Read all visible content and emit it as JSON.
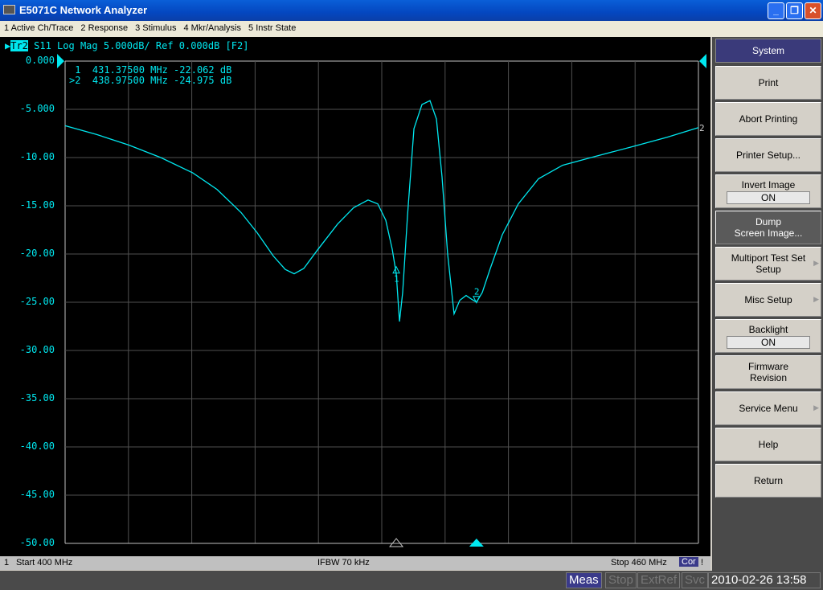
{
  "window": {
    "title": "E5071C Network Analyzer",
    "buttons": [
      "_",
      "❐",
      "✕"
    ]
  },
  "menu": [
    "1 Active Ch/Trace",
    "2 Response",
    "3 Stimulus",
    "4 Mkr/Analysis",
    "5 Instr State"
  ],
  "trace_header": {
    "trace": "Tr2",
    "text": " S11 Log Mag 5.000dB/ Ref 0.000dB [F2]"
  },
  "markers_readout": [
    " 1  431.37500 MHz -22.062 dB",
    ">2  438.97500 MHz -24.975 dB"
  ],
  "chart_data": {
    "type": "line",
    "xlim": [
      400,
      460
    ],
    "ylim": [
      -50,
      0
    ],
    "y_ticks": [
      "0.000",
      "-5.000",
      "-10.00",
      "-15.00",
      "-20.00",
      "-25.00",
      "-30.00",
      "-35.00",
      "-40.00",
      "-45.00",
      "-50.00"
    ],
    "x_unit": "MHz",
    "grid": true,
    "series": [
      {
        "name": "S11",
        "color": "#00e8f0",
        "x": [
          400,
          402.97,
          406.02,
          409.06,
          412.11,
          414.39,
          416.67,
          418.2,
          419.72,
          420.86,
          421.7,
          422.61,
          423.9,
          425.81,
          427.33,
          428.7,
          429.62,
          430.38,
          430.99,
          431.375,
          431.68,
          431.98,
          432.44,
          433.05,
          433.81,
          434.57,
          435.18,
          435.71,
          436.24,
          436.85,
          437.39,
          437.99,
          438.53,
          438.975,
          439.52,
          440.28,
          441.42,
          442.94,
          444.85,
          447.13,
          450.18,
          453.98,
          457.03,
          460
        ],
        "y": [
          -6.7,
          -7.6,
          -8.7,
          -10,
          -11.6,
          -13.3,
          -15.7,
          -17.8,
          -20.2,
          -21.6,
          -22.05,
          -21.5,
          -19.6,
          -16.9,
          -15.2,
          -14.4,
          -14.8,
          -16.5,
          -19.5,
          -22.062,
          -27,
          -24,
          -16,
          -7,
          -4.5,
          -4.1,
          -6,
          -12,
          -20,
          -26.2,
          -24.8,
          -24.3,
          -24.7,
          -24.975,
          -24,
          -21.5,
          -18,
          -14.8,
          -12.2,
          -10.8,
          -9.9,
          -8.8,
          -7.9,
          -6.9
        ]
      }
    ],
    "markers": [
      {
        "label": "1",
        "x": 431.375,
        "y": -22.062
      },
      {
        "label": "2",
        "x": 438.975,
        "y": -24.975
      }
    ],
    "trace_end_label": "2"
  },
  "status": {
    "channel": "1",
    "start": "Start 400 MHz",
    "ifbw": "IFBW 70 kHz",
    "stop": "Stop 460 MHz",
    "cor": "Cor",
    "warn": "!"
  },
  "bottom": {
    "meas": "Meas",
    "stop": "Stop",
    "extref": "ExtRef",
    "svc": "Svc",
    "datetime": "2010-02-26 13:58"
  },
  "softkeys": {
    "title": "System",
    "print": "Print",
    "abort": "Abort Printing",
    "printer_setup": "Printer Setup...",
    "invert": "Invert Image",
    "invert_val": "ON",
    "dump1": "Dump",
    "dump2": "Screen Image...",
    "multiport1": "Multiport Test Set",
    "multiport2": "Setup",
    "misc": "Misc Setup",
    "backlight": "Backlight",
    "backlight_val": "ON",
    "fw1": "Firmware",
    "fw2": "Revision",
    "service": "Service Menu",
    "help": "Help",
    "return": "Return"
  }
}
